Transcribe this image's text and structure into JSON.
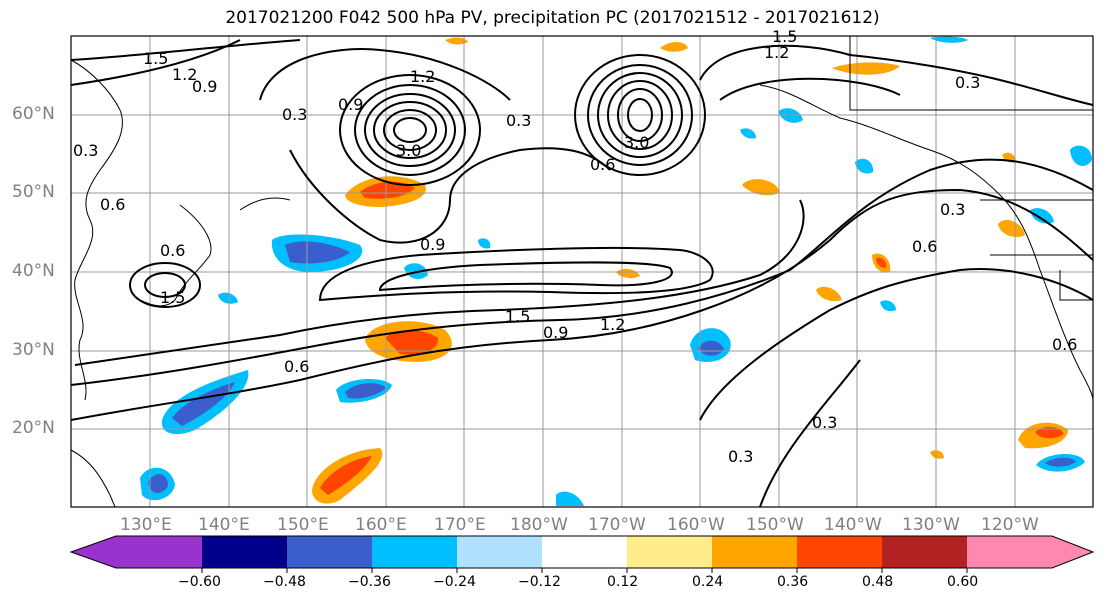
{
  "title": "2017021200 F042 500 hPa PV, precipitation PC (2017021512 - 2017021612)",
  "map": {
    "lat_labels": [
      "60°N",
      "50°N",
      "40°N",
      "30°N",
      "20°N"
    ],
    "lon_labels": [
      "130°E",
      "140°E",
      "150°E",
      "160°E",
      "170°E",
      "180°W",
      "170°W",
      "160°W",
      "150°W",
      "140°W",
      "130°W",
      "120°W"
    ],
    "contour_labels": [
      "1.5",
      "1.2",
      "0.9",
      "0.3",
      "0.6",
      "1.2",
      "0.9",
      "0.3",
      "3.0",
      "3.0",
      "0.6",
      "0.9",
      "0.6",
      "1.5",
      "1.5",
      "0.9",
      "1.2",
      "0.6",
      "0.3",
      "0.3",
      "0.3",
      "0.6",
      "0.3",
      "1.5",
      "1.2",
      "0.3",
      "0.6"
    ]
  },
  "colorbar": {
    "ticks": [
      "−0.60",
      "−0.48",
      "−0.36",
      "−0.24",
      "−0.12",
      "0.12",
      "0.24",
      "0.36",
      "0.48",
      "0.60"
    ],
    "colors": [
      "#9a32cd",
      "#00008b",
      "#3a5fcd",
      "#00bfff",
      "#b0e2ff",
      "#ffffff",
      "#ffec8b",
      "#ffa500",
      "#ff4500",
      "#b22222",
      "#ff88b0"
    ]
  }
}
